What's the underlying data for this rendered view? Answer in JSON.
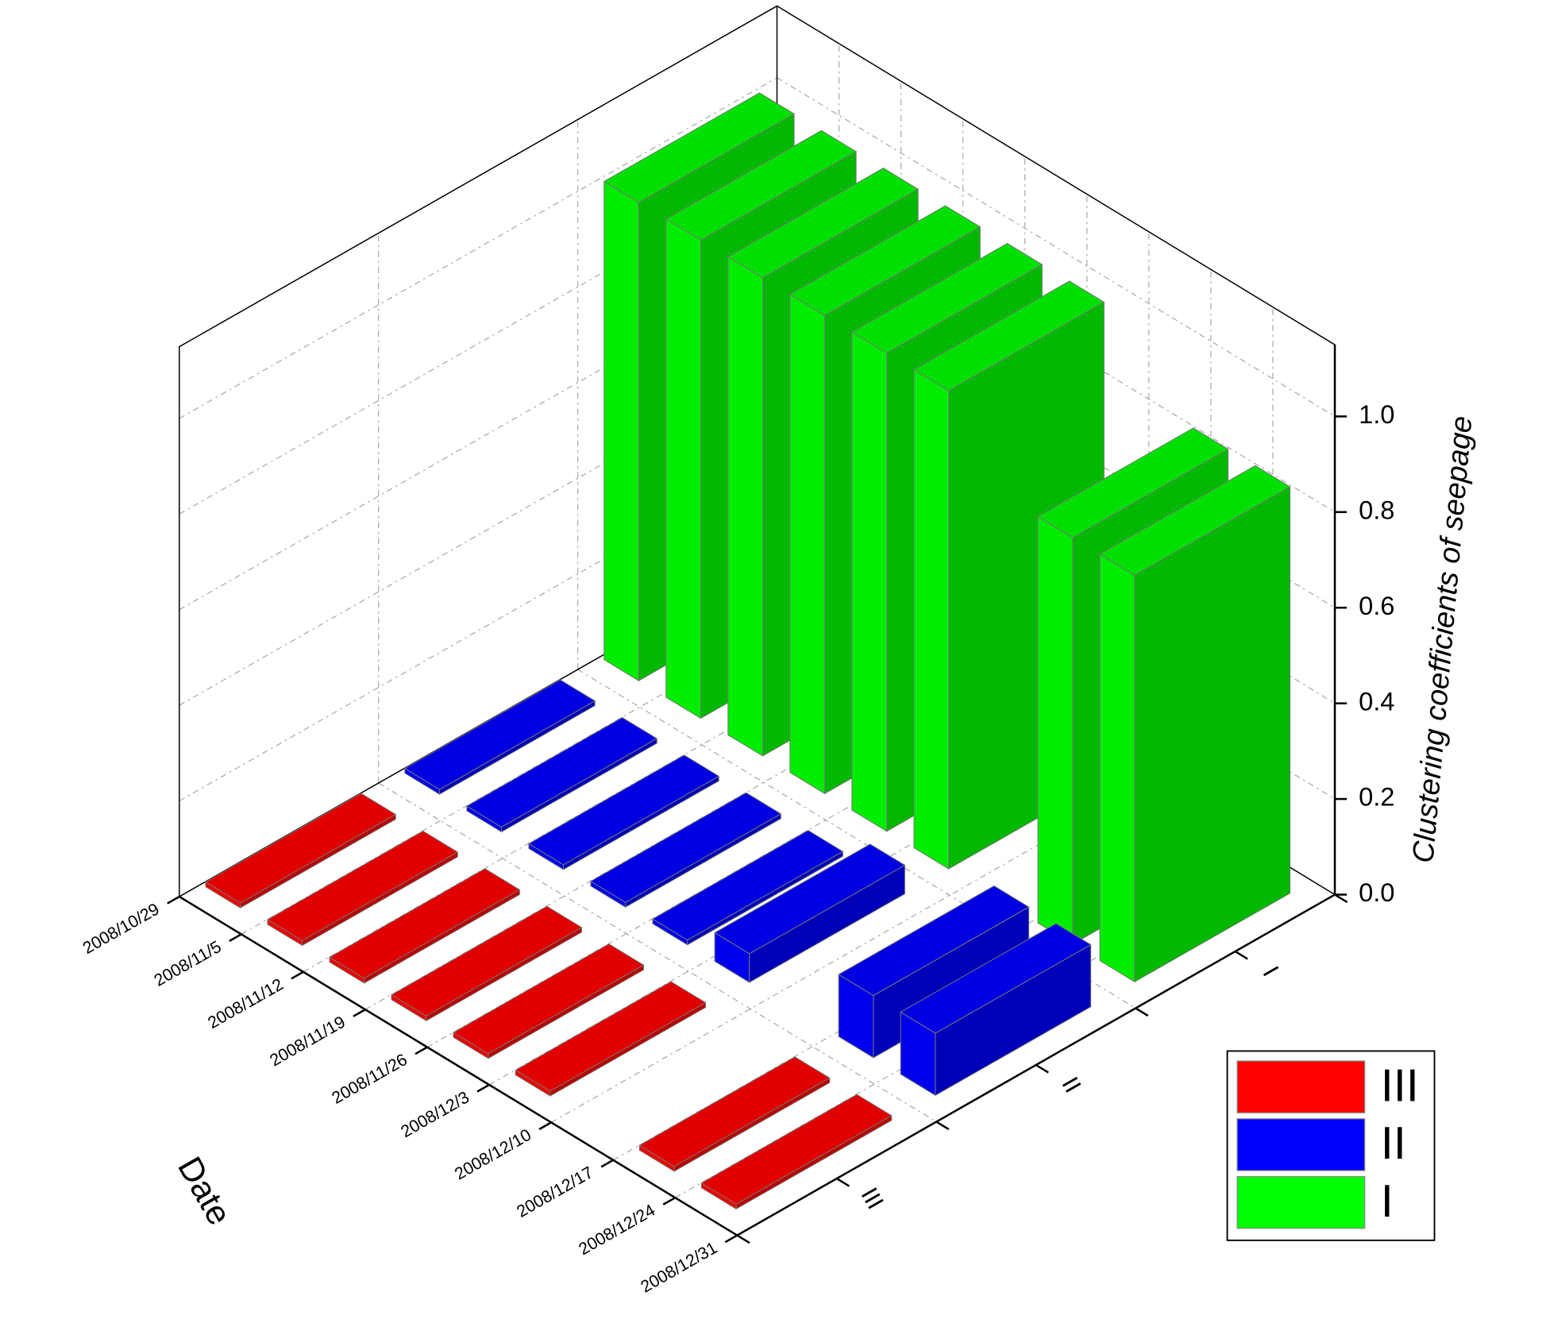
{
  "chart_data": {
    "type": "bar3d",
    "xlabel": "Date",
    "zlabel": "Clustering coefficients of seepage",
    "categories": [
      "2008/10/29",
      "2008/11/5",
      "2008/11/12",
      "2008/11/19",
      "2008/11/26",
      "2008/12/3",
      "2008/12/10",
      "2008/12/17",
      "2008/12/24",
      "2008/12/31"
    ],
    "series": [
      {
        "name": "III",
        "color": "#ff0000",
        "values": [
          0.01,
          0.01,
          0.01,
          0.01,
          0.01,
          0.01,
          null,
          0.01,
          0.01,
          null
        ]
      },
      {
        "name": "II",
        "color": "#0000ff",
        "values": [
          0.01,
          0.01,
          0.01,
          0.01,
          0.01,
          0.06,
          null,
          0.13,
          0.13,
          null
        ]
      },
      {
        "name": "I",
        "color": "#00ff00",
        "values": [
          1.0,
          1.0,
          1.0,
          1.0,
          1.0,
          1.0,
          null,
          0.85,
          0.85,
          null
        ]
      }
    ],
    "zlim": [
      0,
      1.15
    ],
    "zticks": [
      {
        "value": 0,
        "label": "0.0"
      },
      0.2,
      0.4,
      0.6,
      0.8,
      {
        "value": 1,
        "label": "1.0"
      }
    ],
    "grid": true,
    "legend": "bottom-right"
  }
}
